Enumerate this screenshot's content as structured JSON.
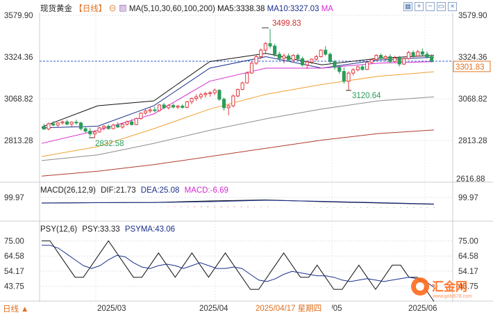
{
  "colors": {
    "up": "#e0383e",
    "down": "#2a9d58",
    "ma5": "#111111",
    "ma10": "#1a2e8a",
    "ma30": "#d72ad0",
    "ma60": "#f0a030",
    "ma100": "#8c8c8c",
    "ma200": "#b03a2e",
    "grid": "#dde3ea",
    "current": "#2a5ad0",
    "watermark": "#ff6a1a"
  },
  "header": {
    "symbol": "现货黄金",
    "period": "【日线】",
    "ma_label": "MA(5,10,30,60,100,200)",
    "ma5_label": "MA5:3338.38",
    "ma10_label": "MA10:3327.03",
    "ma_more": "MA",
    "toolbar_icons": [
      "grid-icon",
      "plus-icon",
      "minus-icon",
      "window-icon",
      "close-icon"
    ]
  },
  "main_panel": {
    "ylim": [
      2580,
      3600
    ],
    "left_ticks": [
      "3579.90",
      "3324.36",
      "3068.82",
      "2813.28"
    ],
    "right_ticks": [
      "3579.90",
      "3324.36",
      "3068.82",
      "2813.28",
      "2616.88"
    ],
    "current_price": "3301.83",
    "annotations": {
      "high": "3499.83",
      "low_start": "2832.58",
      "low_mid": "3120.64"
    }
  },
  "macd_panel": {
    "header": "MACD(26,12,9)",
    "dif_label": "DIF:21.73",
    "dea_label": "DEA:25.08",
    "macd_label": "MACD:-6.69",
    "tick": "99.97"
  },
  "psy_panel": {
    "header": "PSY(12,6)",
    "psy_label": "PSY:33.33",
    "psyma_label": "PSYMA:43.06",
    "ylim": [
      35,
      80
    ],
    "ticks": [
      "75.00",
      "64.58",
      "54.17",
      "43.75"
    ]
  },
  "x_axis": {
    "ticks": [
      "2025/03",
      "2025/04",
      "2025/05",
      "2025/06"
    ],
    "cursor_date": "2025/04/17 星期四",
    "period_button": "日线"
  },
  "watermark": {
    "text": "汇金网",
    "url": "www.gold678.com"
  },
  "chart_data": [
    {
      "type": "candlestick",
      "title": "现货黄金 日线",
      "period": "daily",
      "ylim": [
        2580,
        3600
      ],
      "x_ticks": [
        "2025/03",
        "2025/04",
        "2025/05",
        "2025/06"
      ],
      "y_ticks": [
        3579.9,
        3324.36,
        3068.82,
        2813.28,
        2616.88
      ],
      "candles": [
        [
          2902,
          2920,
          2882,
          2888
        ],
        [
          2888,
          2928,
          2880,
          2920
        ],
        [
          2920,
          2936,
          2905,
          2912
        ],
        [
          2912,
          2930,
          2898,
          2925
        ],
        [
          2925,
          2940,
          2915,
          2932
        ],
        [
          2932,
          2945,
          2910,
          2918
        ],
        [
          2918,
          2935,
          2902,
          2930
        ],
        [
          2930,
          2945,
          2915,
          2925
        ],
        [
          2925,
          2932,
          2880,
          2890
        ],
        [
          2890,
          2905,
          2860,
          2875
        ],
        [
          2875,
          2895,
          2842,
          2858
        ],
        [
          2858,
          2880,
          2833,
          2870
        ],
        [
          2870,
          2902,
          2865,
          2895
        ],
        [
          2895,
          2912,
          2880,
          2905
        ],
        [
          2905,
          2915,
          2885,
          2890
        ],
        [
          2890,
          2920,
          2886,
          2912
        ],
        [
          2912,
          2930,
          2895,
          2900
        ],
        [
          2900,
          2925,
          2890,
          2918
        ],
        [
          2918,
          2940,
          2908,
          2932
        ],
        [
          2932,
          2948,
          2910,
          2915
        ],
        [
          2915,
          2958,
          2912,
          2952
        ],
        [
          2952,
          2990,
          2945,
          2985
        ],
        [
          2985,
          3010,
          2975,
          2998
        ],
        [
          2998,
          3020,
          2985,
          3005
        ],
        [
          3005,
          3025,
          2990,
          3000
        ],
        [
          3000,
          3040,
          2995,
          3035
        ],
        [
          3035,
          3048,
          3010,
          3018
        ],
        [
          3018,
          3040,
          3008,
          3032
        ],
        [
          3032,
          3045,
          3015,
          3022
        ],
        [
          3022,
          3036,
          3010,
          3028
        ],
        [
          3028,
          3040,
          3012,
          3020
        ],
        [
          3020,
          3060,
          3015,
          3055
        ],
        [
          3055,
          3080,
          3040,
          3075
        ],
        [
          3075,
          3100,
          3060,
          3085
        ],
        [
          3085,
          3110,
          3070,
          3098
        ],
        [
          3098,
          3115,
          3080,
          3105
        ],
        [
          3105,
          3120,
          3085,
          3110
        ],
        [
          3110,
          3135,
          3095,
          3125
        ],
        [
          3125,
          3132,
          3060,
          3070
        ],
        [
          3070,
          3080,
          3000,
          3018
        ],
        [
          3018,
          3040,
          2972,
          3030
        ],
        [
          3030,
          3100,
          3020,
          3090
        ],
        [
          3090,
          3135,
          3082,
          3130
        ],
        [
          3130,
          3178,
          3125,
          3170
        ],
        [
          3170,
          3240,
          3165,
          3230
        ],
        [
          3230,
          3300,
          3225,
          3290
        ],
        [
          3290,
          3340,
          3280,
          3330
        ],
        [
          3330,
          3380,
          3315,
          3370
        ],
        [
          3370,
          3420,
          3345,
          3410
        ],
        [
          3410,
          3500,
          3380,
          3395
        ],
        [
          3395,
          3410,
          3330,
          3345
        ],
        [
          3345,
          3360,
          3300,
          3320
        ],
        [
          3320,
          3350,
          3290,
          3335
        ],
        [
          3335,
          3350,
          3300,
          3310
        ],
        [
          3310,
          3345,
          3295,
          3338
        ],
        [
          3338,
          3350,
          3310,
          3318
        ],
        [
          3318,
          3330,
          3270,
          3280
        ],
        [
          3280,
          3310,
          3255,
          3298
        ],
        [
          3298,
          3320,
          3285,
          3315
        ],
        [
          3315,
          3340,
          3305,
          3330
        ],
        [
          3330,
          3375,
          3325,
          3370
        ],
        [
          3370,
          3395,
          3335,
          3345
        ],
        [
          3345,
          3355,
          3290,
          3300
        ],
        [
          3300,
          3310,
          3250,
          3265
        ],
        [
          3265,
          3280,
          3225,
          3240
        ],
        [
          3240,
          3265,
          3165,
          3180
        ],
        [
          3180,
          3240,
          3121,
          3230
        ],
        [
          3230,
          3260,
          3215,
          3250
        ],
        [
          3250,
          3275,
          3240,
          3268
        ],
        [
          3268,
          3280,
          3245,
          3252
        ],
        [
          3252,
          3300,
          3248,
          3295
        ],
        [
          3295,
          3320,
          3285,
          3312
        ],
        [
          3312,
          3345,
          3305,
          3338
        ],
        [
          3338,
          3350,
          3310,
          3320
        ],
        [
          3320,
          3340,
          3300,
          3330
        ],
        [
          3330,
          3345,
          3290,
          3300
        ],
        [
          3300,
          3335,
          3295,
          3322
        ],
        [
          3322,
          3335,
          3270,
          3285
        ],
        [
          3285,
          3325,
          3280,
          3318
        ],
        [
          3318,
          3365,
          3312,
          3355
        ],
        [
          3355,
          3368,
          3325,
          3335
        ],
        [
          3335,
          3372,
          3330,
          3360
        ],
        [
          3360,
          3380,
          3335,
          3345
        ],
        [
          3345,
          3362,
          3318,
          3330
        ],
        [
          3330,
          3345,
          3295,
          3302
        ]
      ],
      "series": [
        {
          "name": "MA5",
          "values": [
            2900,
            3030,
            3060,
            3300,
            3350,
            3280,
            3320,
            3338
          ]
        },
        {
          "name": "MA10",
          "values": [
            2895,
            2905,
            3030,
            3260,
            3330,
            3260,
            3310,
            3327
          ]
        },
        {
          "name": "MA30",
          "values": [
            2800,
            2880,
            2980,
            3180,
            3260,
            3260,
            3290,
            3300
          ]
        },
        {
          "name": "MA60",
          "values": [
            2720,
            2780,
            2890,
            3010,
            3100,
            3160,
            3210,
            3238
          ]
        },
        {
          "name": "MA100",
          "values": [
            2695,
            2730,
            2800,
            2880,
            2950,
            3010,
            3060,
            3085
          ]
        },
        {
          "name": "MA200",
          "values": [
            2600,
            2630,
            2670,
            2720,
            2770,
            2820,
            2860,
            2882
          ]
        }
      ]
    },
    {
      "type": "line",
      "title": "MACD(26,12,9)",
      "series": [
        {
          "name": "DIF",
          "values": [
            40,
            45,
            48,
            70,
            85,
            60,
            40,
            21.73
          ]
        },
        {
          "name": "DEA",
          "values": [
            38,
            44,
            46,
            60,
            80,
            65,
            45,
            25.08
          ]
        }
      ],
      "histogram": [
        2,
        1,
        2,
        10,
        5,
        -5,
        -5,
        -6.69
      ],
      "ylim": [
        -100,
        100
      ]
    },
    {
      "type": "line",
      "title": "PSY(12,6)",
      "ylim": [
        35,
        80
      ],
      "series": [
        {
          "name": "PSY",
          "values": [
            75,
            75,
            66.67,
            58.33,
            50,
            50,
            58.33,
            66.67,
            75,
            66.67,
            58.33,
            50,
            50,
            58.33,
            66.67,
            58.33,
            50,
            58.33,
            66.67,
            58.33,
            50,
            58.33,
            66.67,
            58.33,
            50,
            41.67,
            41.67,
            50,
            58.33,
            66.67,
            58.33,
            50,
            50,
            58.33,
            50,
            41.67,
            41.67,
            50,
            58.33,
            50,
            41.67,
            50,
            58.33,
            58.33,
            50,
            50,
            41.67,
            33.33
          ]
        },
        {
          "name": "PSYMA",
          "values": [
            72,
            72,
            70,
            66,
            62,
            58,
            56,
            58,
            62,
            65,
            64,
            60,
            57,
            56,
            58,
            59,
            58,
            56,
            58,
            60,
            58,
            56,
            56,
            57,
            56,
            52,
            48,
            47,
            49,
            52,
            54,
            53,
            52,
            51,
            51,
            50,
            48,
            47,
            48,
            49,
            48,
            47,
            48,
            49,
            50,
            49,
            47,
            43.06
          ]
        }
      ],
      "y_ticks": [
        75.0,
        64.58,
        54.17,
        43.75
      ]
    }
  ]
}
